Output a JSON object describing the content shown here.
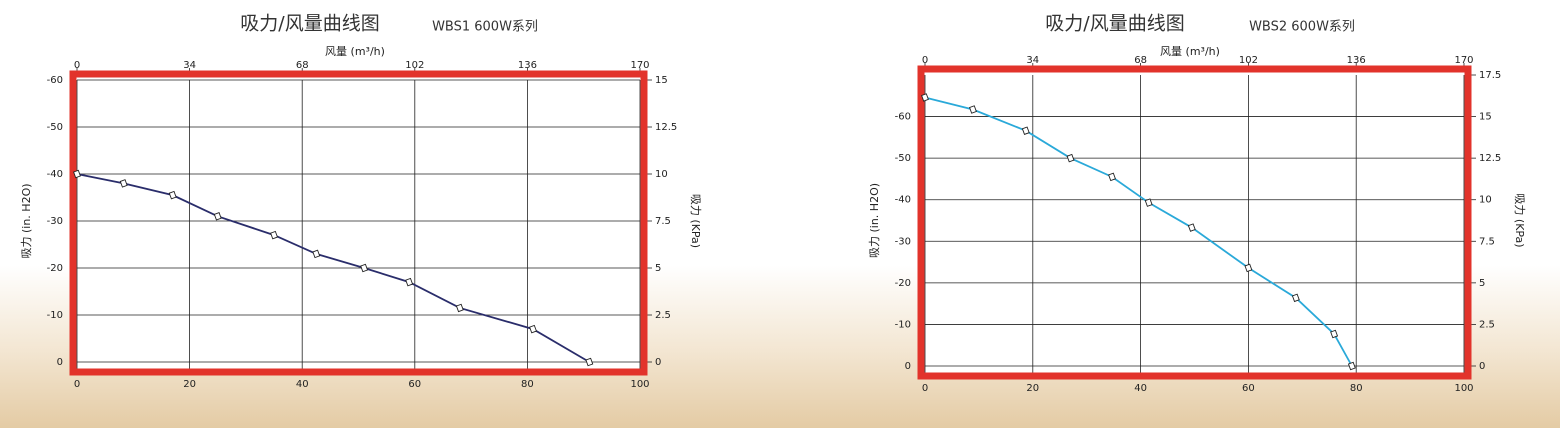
{
  "chart_data": [
    {
      "type": "line",
      "title": "吸力/风量曲线图",
      "subtitle": "WBS1 600W系列",
      "x_label": "风量 (m³/h)",
      "y_label": "吸力 (in. H2O)",
      "y2_label": "吸力 (KPa)",
      "x": [
        0,
        8.3,
        17,
        25,
        35,
        42.5,
        51,
        59,
        68,
        81,
        91
      ],
      "series": [
        {
          "color": "#2a2d6b",
          "values": [
            -40,
            -38,
            -35.5,
            -31,
            -27,
            -23,
            -20,
            -17,
            -11.5,
            -7,
            0
          ]
        }
      ],
      "xlim": [
        0,
        100
      ],
      "xticks": [
        0,
        20,
        40,
        60,
        80,
        100
      ],
      "x2lim": [
        0,
        170
      ],
      "x2ticks": [
        0,
        34,
        68,
        102,
        136,
        170
      ],
      "ylim": [
        0,
        -60
      ],
      "yticks": [
        0,
        -10,
        -20,
        -30,
        -40,
        -50,
        -60
      ],
      "y2lim": [
        0,
        15
      ],
      "y2ticks": [
        0,
        2.5,
        5,
        7.5,
        10,
        12.5,
        15
      ],
      "grid": true,
      "frame_color": "#e2332b"
    },
    {
      "type": "line",
      "title": "吸力/风量曲线图",
      "subtitle": "WBS2 600W系列",
      "x_label": "风量 (m³/h)",
      "y_label": "吸力 (in. H2O)",
      "y2_label": "吸力 (KPa)",
      "x": [
        0,
        8.9,
        18.7,
        27,
        34.7,
        41.5,
        49.5,
        60,
        68.8,
        75.9,
        79.2
      ],
      "series": [
        {
          "color": "#2aa9d9",
          "values": [
            -64.6,
            -61.7,
            -56.6,
            -50,
            -45.5,
            -39.3,
            -33.3,
            -23.6,
            -16.4,
            -7.7,
            0
          ]
        }
      ],
      "xlim": [
        0,
        100
      ],
      "xticks": [
        0,
        20,
        40,
        60,
        80,
        100
      ],
      "x2lim": [
        0,
        170
      ],
      "x2ticks": [
        0,
        34,
        68,
        102,
        136,
        170
      ],
      "ylim": [
        0,
        -70
      ],
      "yticks": [
        0,
        -10,
        -20,
        -30,
        -40,
        -50,
        -60
      ],
      "y2lim": [
        0,
        17.5
      ],
      "y2ticks": [
        0,
        2.5,
        5,
        7.5,
        10,
        12.5,
        15,
        17.5
      ],
      "grid": true,
      "frame_color": "#e2332b"
    }
  ]
}
